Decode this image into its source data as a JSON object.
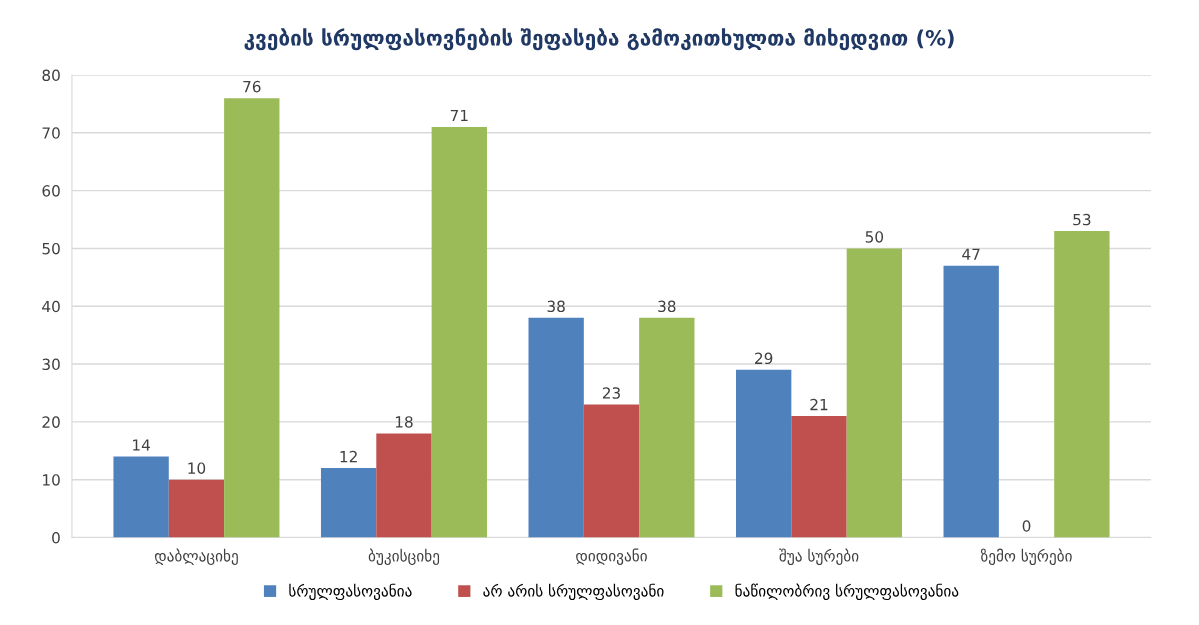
{
  "chart_data": {
    "type": "bar",
    "title": "კვების სრულფასოვნების შეფასება გამოკითხულთა მიხედვით (%)",
    "categories": [
      "დაბლაციხე",
      "ბუკისციხე",
      "დიდივანი",
      "შუა სურები",
      "ზემო სურები"
    ],
    "series": [
      {
        "name": "სრულფასოვანია",
        "color": "#4f81bd",
        "values": [
          14,
          12,
          38,
          29,
          47
        ]
      },
      {
        "name": "არ არის სრულფასოვანი",
        "color": "#c0504d",
        "values": [
          10,
          18,
          23,
          21,
          0
        ]
      },
      {
        "name": "ნაწილობრივ სრულფასოვანია",
        "color": "#9bbb59",
        "values": [
          76,
          71,
          38,
          50,
          53
        ]
      }
    ],
    "ylim": [
      0,
      80
    ],
    "yticks": [
      0,
      10,
      20,
      30,
      40,
      50,
      60,
      70,
      80
    ],
    "grid": "y",
    "legend": "bottom",
    "data_labels": true
  }
}
